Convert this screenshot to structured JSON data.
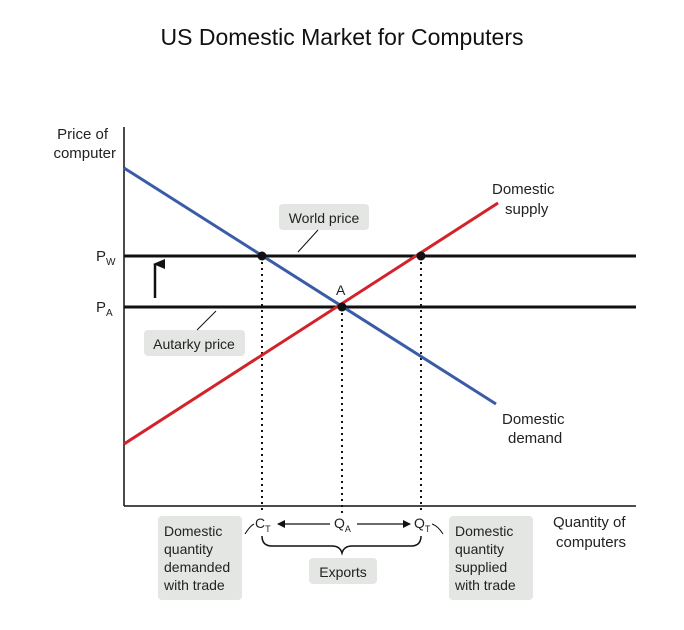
{
  "title": "US Domestic Market for Computers",
  "axes": {
    "y_label": [
      "Price of",
      "computer"
    ],
    "x_label": [
      "Quantity of",
      "computers"
    ]
  },
  "price_labels": {
    "pw": "P",
    "pw_sub": "W",
    "pa": "P",
    "pa_sub": "A"
  },
  "curves": {
    "supply_label": [
      "Domestic",
      "supply"
    ],
    "demand_label": [
      "Domestic",
      "demand"
    ],
    "supply_color": "#d2232a",
    "demand_color": "#3a5ba7"
  },
  "callouts": {
    "world_price": "World price",
    "autarky_price": "Autarky price",
    "equilibrium": "A"
  },
  "quantities": {
    "ct": "C",
    "ct_sub": "T",
    "qa": "Q",
    "qa_sub": "A",
    "qt": "Q",
    "qt_sub": "T"
  },
  "bottom": {
    "demanded": [
      "Domestic",
      "quantity",
      "demanded",
      "with trade"
    ],
    "supplied": [
      "Domestic",
      "quantity",
      "supplied",
      "with trade"
    ],
    "exports": "Exports"
  },
  "colors": {
    "box": "#e3e6e3",
    "line": "#111111"
  }
}
